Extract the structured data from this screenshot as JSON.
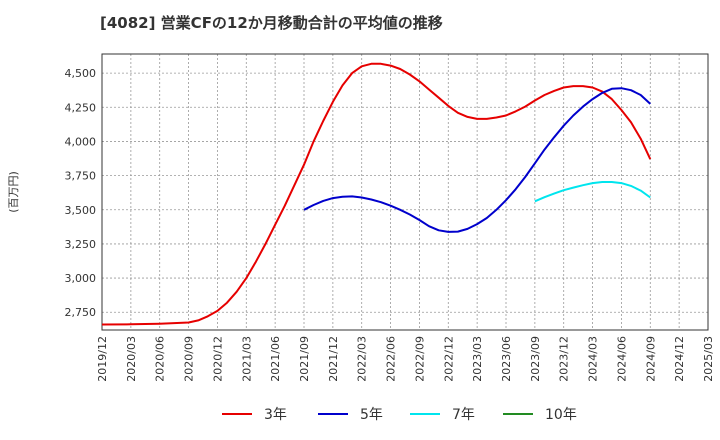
{
  "chart_data": {
    "type": "line",
    "title": "[4082]  営業CFの12か月移動合計の平均値の推移",
    "ylabel": "(百万円)",
    "xlabel": "",
    "ylim": [
      2620,
      4640
    ],
    "yticks": [
      2750,
      3000,
      3250,
      3500,
      3750,
      4000,
      4250,
      4500
    ],
    "ytick_labels": [
      "2,750",
      "3,000",
      "3,250",
      "3,500",
      "3,750",
      "4,000",
      "4,250",
      "4,500"
    ],
    "xticks": [
      "2019/12",
      "2020/03",
      "2020/06",
      "2020/09",
      "2020/12",
      "2021/03",
      "2021/06",
      "2021/09",
      "2021/12",
      "2022/03",
      "2022/06",
      "2022/09",
      "2022/12",
      "2023/03",
      "2023/06",
      "2023/09",
      "2023/12",
      "2024/03",
      "2024/06",
      "2024/09",
      "2024/12",
      "2025/03"
    ],
    "grid": true,
    "legend_position": "bottom",
    "series": [
      {
        "name": "3年",
        "color": "#e60000",
        "points": [
          [
            "2019/12",
            2660
          ],
          [
            "2020/03",
            2662
          ],
          [
            "2020/06",
            2666
          ],
          [
            "2020/09",
            2675
          ],
          [
            "2020/10",
            2690
          ],
          [
            "2020/11",
            2720
          ],
          [
            "2020/12",
            2760
          ],
          [
            "2021/01",
            2820
          ],
          [
            "2021/02",
            2900
          ],
          [
            "2021/03",
            3000
          ],
          [
            "2021/04",
            3120
          ],
          [
            "2021/05",
            3250
          ],
          [
            "2021/06",
            3390
          ],
          [
            "2021/07",
            3530
          ],
          [
            "2021/08",
            3680
          ],
          [
            "2021/09",
            3830
          ],
          [
            "2021/10",
            4000
          ],
          [
            "2021/11",
            4150
          ],
          [
            "2021/12",
            4290
          ],
          [
            "2022/01",
            4410
          ],
          [
            "2022/02",
            4500
          ],
          [
            "2022/03",
            4550
          ],
          [
            "2022/04",
            4568
          ],
          [
            "2022/05",
            4568
          ],
          [
            "2022/06",
            4555
          ],
          [
            "2022/07",
            4530
          ],
          [
            "2022/08",
            4490
          ],
          [
            "2022/09",
            4440
          ],
          [
            "2022/10",
            4380
          ],
          [
            "2022/11",
            4320
          ],
          [
            "2022/12",
            4260
          ],
          [
            "2023/01",
            4210
          ],
          [
            "2023/02",
            4180
          ],
          [
            "2023/03",
            4165
          ],
          [
            "2023/04",
            4165
          ],
          [
            "2023/05",
            4175
          ],
          [
            "2023/06",
            4190
          ],
          [
            "2023/07",
            4220
          ],
          [
            "2023/08",
            4255
          ],
          [
            "2023/09",
            4300
          ],
          [
            "2023/10",
            4340
          ],
          [
            "2023/11",
            4370
          ],
          [
            "2023/12",
            4395
          ],
          [
            "2024/01",
            4405
          ],
          [
            "2024/02",
            4405
          ],
          [
            "2024/03",
            4395
          ],
          [
            "2024/04",
            4365
          ],
          [
            "2024/05",
            4310
          ],
          [
            "2024/06",
            4230
          ],
          [
            "2024/07",
            4140
          ],
          [
            "2024/08",
            4020
          ],
          [
            "2024/09",
            3870
          ]
        ]
      },
      {
        "name": "5年",
        "color": "#0000cc",
        "points": [
          [
            "2021/09",
            3500
          ],
          [
            "2021/10",
            3535
          ],
          [
            "2021/11",
            3565
          ],
          [
            "2021/12",
            3585
          ],
          [
            "2022/01",
            3595
          ],
          [
            "2022/02",
            3598
          ],
          [
            "2022/03",
            3590
          ],
          [
            "2022/04",
            3575
          ],
          [
            "2022/05",
            3555
          ],
          [
            "2022/06",
            3530
          ],
          [
            "2022/07",
            3500
          ],
          [
            "2022/08",
            3465
          ],
          [
            "2022/09",
            3425
          ],
          [
            "2022/10",
            3380
          ],
          [
            "2022/11",
            3350
          ],
          [
            "2022/12",
            3338
          ],
          [
            "2023/01",
            3340
          ],
          [
            "2023/02",
            3360
          ],
          [
            "2023/03",
            3395
          ],
          [
            "2023/04",
            3440
          ],
          [
            "2023/05",
            3500
          ],
          [
            "2023/06",
            3570
          ],
          [
            "2023/07",
            3650
          ],
          [
            "2023/08",
            3740
          ],
          [
            "2023/09",
            3840
          ],
          [
            "2023/10",
            3940
          ],
          [
            "2023/11",
            4030
          ],
          [
            "2023/12",
            4115
          ],
          [
            "2024/01",
            4190
          ],
          [
            "2024/02",
            4255
          ],
          [
            "2024/03",
            4310
          ],
          [
            "2024/04",
            4355
          ],
          [
            "2024/05",
            4385
          ],
          [
            "2024/06",
            4390
          ],
          [
            "2024/07",
            4375
          ],
          [
            "2024/08",
            4340
          ],
          [
            "2024/09",
            4275
          ]
        ]
      },
      {
        "name": "7年",
        "color": "#00e5ee",
        "points": [
          [
            "2023/09",
            3562
          ],
          [
            "2023/10",
            3592
          ],
          [
            "2023/11",
            3618
          ],
          [
            "2023/12",
            3643
          ],
          [
            "2024/01",
            3662
          ],
          [
            "2024/02",
            3680
          ],
          [
            "2024/03",
            3695
          ],
          [
            "2024/04",
            3703
          ],
          [
            "2024/05",
            3703
          ],
          [
            "2024/06",
            3695
          ],
          [
            "2024/07",
            3675
          ],
          [
            "2024/08",
            3640
          ],
          [
            "2024/09",
            3590
          ]
        ]
      },
      {
        "name": "10年",
        "color": "#228b22",
        "points": []
      }
    ]
  }
}
